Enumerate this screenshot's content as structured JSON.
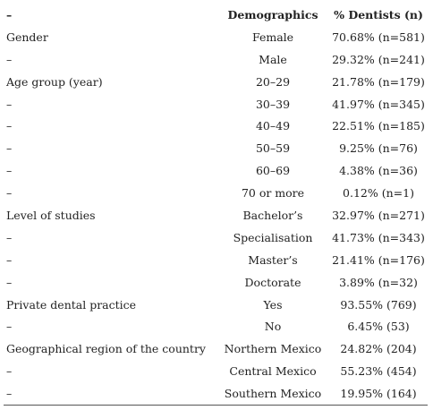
{
  "table": {
    "header": [
      "–",
      "Demographics",
      "% Dentists (n)"
    ],
    "rows": [
      [
        "Gender",
        "Female",
        "70.68% (n=581)"
      ],
      [
        "–",
        "Male",
        "29.32% (n=241)"
      ],
      [
        "Age group (year)",
        "20–29",
        "21.78% (n=179)"
      ],
      [
        "–",
        "30–39",
        "41.97% (n=345)"
      ],
      [
        "–",
        "40–49",
        "22.51% (n=185)"
      ],
      [
        "–",
        "50–59",
        "9.25% (n=76)"
      ],
      [
        "–",
        "60–69",
        "4.38% (n=36)"
      ],
      [
        "–",
        "70 or more",
        "0.12% (n=1)"
      ],
      [
        "Level of studies",
        "Bachelor’s",
        "32.97% (n=271)"
      ],
      [
        "–",
        "Specialisation",
        "41.73% (n=343)"
      ],
      [
        "–",
        "Master’s",
        "21.41% (n=176)"
      ],
      [
        "–",
        "Doctorate",
        "3.89% (n=32)"
      ],
      [
        "Private dental practice",
        "Yes",
        "93.55% (769)"
      ],
      [
        "–",
        "No",
        "6.45% (53)"
      ],
      [
        "Geographical region of the country",
        "Northern Mexico",
        "24.82% (204)"
      ],
      [
        "–",
        "Central Mexico",
        "55.23% (454)"
      ],
      [
        "–",
        "Southern Mexico",
        "19.95% (164)"
      ]
    ]
  }
}
